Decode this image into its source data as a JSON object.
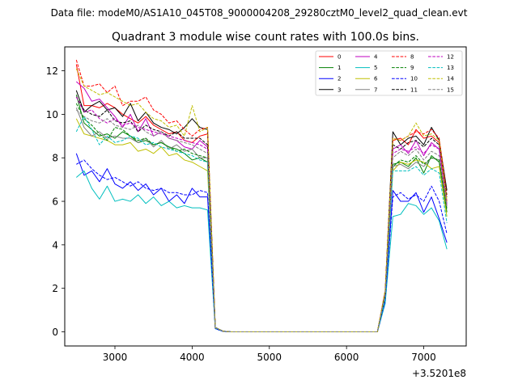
{
  "chart_data": {
    "type": "line",
    "suptitle": "Data file: modeM0/AS1A10_045T08_9000004208_29280cztM0_level2_quad_clean.evt",
    "title": "Quadrant 3 module wise count rates with 100.0s bins.",
    "xlabel": "",
    "ylabel": "",
    "offset_text": "+3.5201e8",
    "xlim": [
      2350,
      7550
    ],
    "ylim": [
      -0.65,
      13.1
    ],
    "xticks": [
      3000,
      4000,
      5000,
      6000,
      7000
    ],
    "yticks": [
      0,
      2,
      4,
      6,
      8,
      10,
      12
    ],
    "legend": {
      "placement": "top-right",
      "ncol": 4
    },
    "x": [
      2500,
      2600,
      2700,
      2800,
      2900,
      3000,
      3100,
      3200,
      3300,
      3400,
      3500,
      3600,
      3700,
      3800,
      3900,
      4000,
      4100,
      4200,
      4300,
      4400,
      4500,
      4600,
      4700,
      4800,
      4900,
      5000,
      5100,
      5200,
      5300,
      5400,
      5500,
      5600,
      5700,
      5800,
      5900,
      6000,
      6100,
      6200,
      6300,
      6400,
      6500,
      6600,
      6700,
      6800,
      6900,
      7000,
      7100,
      7200,
      7300
    ],
    "series": [
      {
        "name": "0",
        "color": "#ff0000",
        "dash": "solid",
        "level": 9.9,
        "gap_level": 8.6,
        "values": [
          12.3,
          10.4,
          10.4,
          10.3,
          10.5,
          10.3,
          10.0,
          9.8,
          9.6,
          9.9,
          9.5,
          9.3,
          9.1,
          9.2,
          8.8,
          8.7,
          9.0,
          9.1,
          0.2,
          0.03,
          0,
          0,
          0,
          0,
          0,
          0,
          0,
          0,
          0,
          0,
          0,
          0,
          0,
          0,
          0,
          0,
          0,
          0,
          0,
          0,
          1.8,
          8.8,
          8.9,
          8.6,
          9.3,
          8.9,
          9.0,
          8.7,
          6.0
        ]
      },
      {
        "name": "1",
        "color": "#008000",
        "dash": "solid",
        "level": 9.0,
        "gap_level": 7.7,
        "values": [
          10.9,
          9.6,
          9.3,
          9.0,
          9.1,
          8.9,
          9.2,
          9.0,
          8.7,
          8.8,
          8.6,
          8.7,
          8.5,
          8.4,
          8.2,
          7.9,
          8.0,
          7.8,
          0.2,
          0.03,
          0,
          0,
          0,
          0,
          0,
          0,
          0,
          0,
          0,
          0,
          0,
          0,
          0,
          0,
          0,
          0,
          0,
          0,
          0,
          0,
          1.6,
          7.7,
          7.8,
          7.6,
          8.0,
          7.3,
          8.1,
          7.8,
          5.5
        ]
      },
      {
        "name": "2",
        "color": "#0000ff",
        "dash": "solid",
        "level": 6.7,
        "gap_level": 6.0,
        "values": [
          8.2,
          7.2,
          7.4,
          6.9,
          7.5,
          6.8,
          6.6,
          6.9,
          6.5,
          6.8,
          6.3,
          6.6,
          6.0,
          6.3,
          5.9,
          6.6,
          6.2,
          6.2,
          0.15,
          0.02,
          0,
          0,
          0,
          0,
          0,
          0,
          0,
          0,
          0,
          0,
          0,
          0,
          0,
          0,
          0,
          0,
          0,
          0,
          0,
          0,
          1.4,
          6.5,
          6.0,
          6.0,
          6.4,
          5.5,
          6.2,
          5.2,
          4.1
        ]
      },
      {
        "name": "3",
        "color": "#000000",
        "dash": "solid",
        "level": 9.9,
        "gap_level": 8.8,
        "values": [
          11.1,
          10.1,
          10.4,
          10.6,
          10.2,
          10.3,
          9.9,
          10.5,
          9.7,
          10.1,
          9.6,
          9.4,
          9.3,
          9.1,
          9.4,
          9.8,
          9.4,
          9.3,
          0.2,
          0.03,
          0,
          0,
          0,
          0,
          0,
          0,
          0,
          0,
          0,
          0,
          0,
          0,
          0,
          0,
          0,
          0,
          0,
          0,
          0,
          0,
          1.8,
          9.2,
          8.6,
          8.9,
          9.0,
          8.6,
          9.4,
          8.8,
          6.5
        ]
      },
      {
        "name": "4",
        "color": "#bf00bf",
        "dash": "solid",
        "level": 9.3,
        "gap_level": 8.5,
        "values": [
          11.5,
          11.2,
          10.6,
          10.7,
          10.3,
          9.9,
          9.4,
          10.0,
          9.2,
          9.8,
          9.0,
          9.2,
          8.9,
          8.8,
          8.5,
          8.4,
          8.8,
          8.5,
          0.2,
          0.03,
          0,
          0,
          0,
          0,
          0,
          0,
          0,
          0,
          0,
          0,
          0,
          0,
          0,
          0,
          0,
          0,
          0,
          0,
          0,
          0,
          1.7,
          8.4,
          8.6,
          8.2,
          8.8,
          8.1,
          8.7,
          8.4,
          5.8
        ]
      },
      {
        "name": "5",
        "color": "#00bfbf",
        "dash": "solid",
        "level": 6.2,
        "gap_level": 5.6,
        "values": [
          7.1,
          7.4,
          6.6,
          6.1,
          6.7,
          6.0,
          6.1,
          6.0,
          6.3,
          5.9,
          6.2,
          5.8,
          6.0,
          5.7,
          5.8,
          5.7,
          5.7,
          5.6,
          0.15,
          0.02,
          0,
          0,
          0,
          0,
          0,
          0,
          0,
          0,
          0,
          0,
          0,
          0,
          0,
          0,
          0,
          0,
          0,
          0,
          0,
          0,
          1.3,
          5.3,
          5.4,
          5.9,
          5.8,
          5.4,
          5.7,
          5.1,
          3.8
        ]
      },
      {
        "name": "6",
        "color": "#bfbf00",
        "dash": "solid",
        "level": 8.9,
        "gap_level": 7.7,
        "values": [
          9.8,
          9.1,
          9.0,
          8.9,
          8.8,
          8.6,
          8.6,
          8.7,
          8.3,
          8.4,
          8.2,
          8.5,
          8.1,
          8.2,
          7.9,
          7.8,
          7.6,
          7.4,
          0.2,
          0.03,
          0,
          0,
          0,
          0,
          0,
          0,
          0,
          0,
          0,
          0,
          0,
          0,
          0,
          0,
          0,
          0,
          0,
          0,
          0,
          0,
          1.6,
          7.4,
          7.8,
          7.7,
          7.9,
          7.8,
          7.5,
          7.6,
          5.3
        ]
      },
      {
        "name": "7",
        "color": "#808080",
        "dash": "solid",
        "level": 9.2,
        "gap_level": 8.0,
        "values": [
          10.3,
          9.4,
          9.0,
          9.2,
          8.9,
          9.0,
          8.9,
          8.9,
          8.7,
          8.9,
          8.5,
          8.8,
          8.4,
          8.6,
          8.3,
          8.4,
          8.0,
          8.0,
          0.2,
          0.03,
          0,
          0,
          0,
          0,
          0,
          0,
          0,
          0,
          0,
          0,
          0,
          0,
          0,
          0,
          0,
          0,
          0,
          0,
          0,
          0,
          1.6,
          7.6,
          7.7,
          7.5,
          7.8,
          7.6,
          8.0,
          7.9,
          5.7
        ]
      },
      {
        "name": "8",
        "color": "#ff0000",
        "dash": "dashed",
        "level": 10.7,
        "gap_level": 9.0,
        "values": [
          12.5,
          11.3,
          11.3,
          11.4,
          11.0,
          11.3,
          10.4,
          10.6,
          10.6,
          10.8,
          10.2,
          10.0,
          9.6,
          9.7,
          9.3,
          9.0,
          9.3,
          9.4,
          0.2,
          0.03,
          0,
          0,
          0,
          0,
          0,
          0,
          0,
          0,
          0,
          0,
          0,
          0,
          0,
          0,
          0,
          0,
          0,
          0,
          0,
          0,
          1.9,
          8.9,
          8.8,
          9.0,
          9.2,
          9.1,
          9.3,
          8.9,
          6.3
        ]
      },
      {
        "name": "9",
        "color": "#008000",
        "dash": "dashed",
        "level": 9.2,
        "gap_level": 8.0,
        "values": [
          10.5,
          9.8,
          9.5,
          9.1,
          8.8,
          9.4,
          9.3,
          9.0,
          8.8,
          8.9,
          8.6,
          8.7,
          8.5,
          8.3,
          8.4,
          8.2,
          8.1,
          8.0,
          0.2,
          0.03,
          0,
          0,
          0,
          0,
          0,
          0,
          0,
          0,
          0,
          0,
          0,
          0,
          0,
          0,
          0,
          0,
          0,
          0,
          0,
          0,
          1.6,
          7.6,
          7.9,
          7.8,
          8.1,
          7.7,
          8.0,
          7.9,
          5.6
        ]
      },
      {
        "name": "10",
        "color": "#0000ff",
        "dash": "dashed",
        "level": 7.2,
        "gap_level": 6.3,
        "values": [
          7.7,
          7.9,
          7.5,
          7.2,
          7.0,
          7.1,
          6.9,
          6.7,
          6.9,
          6.6,
          6.5,
          6.6,
          6.4,
          6.4,
          6.3,
          6.3,
          6.5,
          6.4,
          0.15,
          0.02,
          0,
          0,
          0,
          0,
          0,
          0,
          0,
          0,
          0,
          0,
          0,
          0,
          0,
          0,
          0,
          0,
          0,
          0,
          0,
          0,
          1.4,
          6.2,
          6.4,
          6.1,
          6.3,
          6.0,
          6.7,
          6.0,
          4.5
        ]
      },
      {
        "name": "11",
        "color": "#000000",
        "dash": "dashed",
        "level": 9.7,
        "gap_level": 8.6,
        "values": [
          10.8,
          10.2,
          10.0,
          9.9,
          10.2,
          9.7,
          9.6,
          9.7,
          9.2,
          9.5,
          9.3,
          9.2,
          9.0,
          9.2,
          8.9,
          8.9,
          8.9,
          8.6,
          0.2,
          0.03,
          0,
          0,
          0,
          0,
          0,
          0,
          0,
          0,
          0,
          0,
          0,
          0,
          0,
          0,
          0,
          0,
          0,
          0,
          0,
          0,
          1.7,
          8.6,
          8.4,
          8.7,
          8.8,
          8.5,
          8.9,
          8.6,
          6.2
        ]
      },
      {
        "name": "12",
        "color": "#bf00bf",
        "dash": "dashed",
        "level": 9.6,
        "gap_level": 8.4,
        "values": [
          10.8,
          10.1,
          10.2,
          9.8,
          9.6,
          9.8,
          9.5,
          9.6,
          9.4,
          9.3,
          9.2,
          9.1,
          9.0,
          8.9,
          8.8,
          8.7,
          8.6,
          8.4,
          0.2,
          0.03,
          0,
          0,
          0,
          0,
          0,
          0,
          0,
          0,
          0,
          0,
          0,
          0,
          0,
          0,
          0,
          0,
          0,
          0,
          0,
          0,
          1.7,
          8.2,
          8.4,
          8.3,
          8.5,
          8.2,
          8.6,
          8.4,
          5.9
        ]
      },
      {
        "name": "13",
        "color": "#00bfbf",
        "dash": "dashed",
        "level": 8.9,
        "gap_level": 7.5,
        "values": [
          9.2,
          9.9,
          9.3,
          8.6,
          9.0,
          8.7,
          8.8,
          9.0,
          8.9,
          8.6,
          8.7,
          8.5,
          8.4,
          8.3,
          8.2,
          8.1,
          7.9,
          7.8,
          0.2,
          0.03,
          0,
          0,
          0,
          0,
          0,
          0,
          0,
          0,
          0,
          0,
          0,
          0,
          0,
          0,
          0,
          0,
          0,
          0,
          0,
          0,
          1.5,
          7.4,
          7.4,
          7.4,
          7.6,
          7.2,
          7.5,
          7.3,
          5.0
        ]
      },
      {
        "name": "14",
        "color": "#bfbf00",
        "dash": "dashed",
        "level": 10.5,
        "gap_level": 9.0,
        "values": [
          12.1,
          11.3,
          11.1,
          10.9,
          11.0,
          10.8,
          10.6,
          10.4,
          10.5,
          10.1,
          9.8,
          9.7,
          9.4,
          9.5,
          9.0,
          10.4,
          9.2,
          9.4,
          0.2,
          0.03,
          0,
          0,
          0,
          0,
          0,
          0,
          0,
          0,
          0,
          0,
          0,
          0,
          0,
          0,
          0,
          0,
          0,
          0,
          0,
          0,
          1.9,
          8.9,
          8.8,
          9.0,
          9.6,
          9.0,
          9.1,
          8.8,
          6.0
        ]
      },
      {
        "name": "15",
        "color": "#808080",
        "dash": "dashed",
        "level": 9.6,
        "gap_level": 8.2,
        "values": [
          10.2,
          9.9,
          9.7,
          9.6,
          9.8,
          9.5,
          9.4,
          9.3,
          9.5,
          9.2,
          9.0,
          9.2,
          8.9,
          8.8,
          8.7,
          8.6,
          8.4,
          8.2,
          0.2,
          0.03,
          0,
          0,
          0,
          0,
          0,
          0,
          0,
          0,
          0,
          0,
          0,
          0,
          0,
          0,
          0,
          0,
          0,
          0,
          0,
          0,
          1.7,
          8.0,
          8.3,
          8.1,
          8.4,
          7.9,
          8.3,
          8.1,
          5.8
        ]
      }
    ]
  }
}
